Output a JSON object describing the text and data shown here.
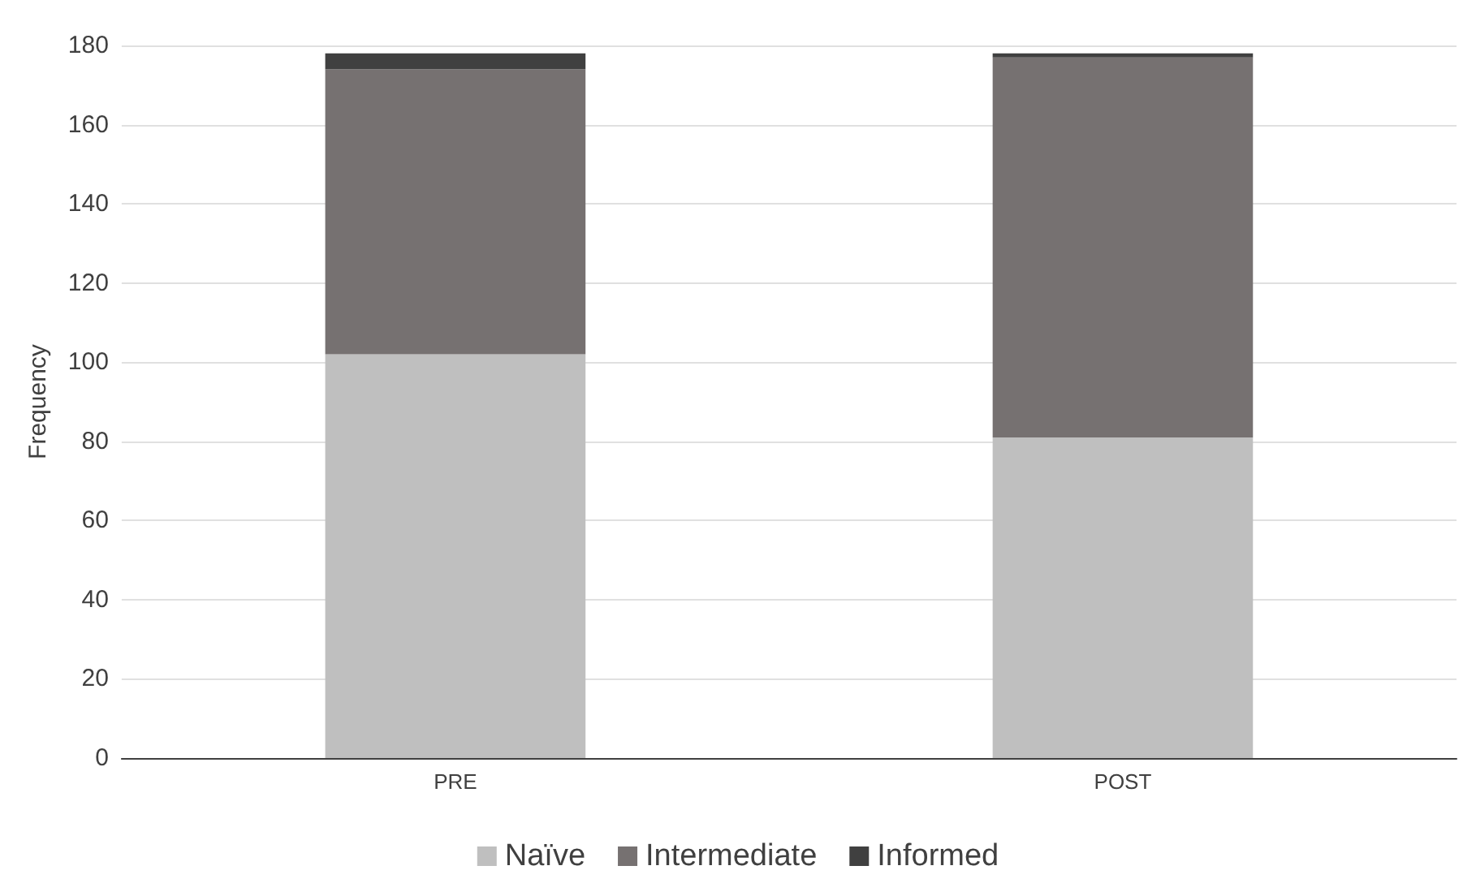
{
  "chart_data": {
    "type": "bar",
    "ylabel": "Frequency",
    "categories": [
      "PRE",
      "POST"
    ],
    "stacked": true,
    "series": [
      {
        "name": "Naïve",
        "color": "#bfbfbf",
        "values": [
          102,
          81
        ]
      },
      {
        "name": "Intermediate",
        "color": "#767171",
        "values": [
          72,
          96
        ]
      },
      {
        "name": "Informed",
        "color": "#404040",
        "values": [
          4,
          1
        ]
      }
    ],
    "ylim": [
      0,
      180
    ],
    "yticks": [
      0,
      20,
      40,
      60,
      80,
      100,
      120,
      140,
      160,
      180
    ],
    "grid": "y",
    "legend": "bottom"
  }
}
